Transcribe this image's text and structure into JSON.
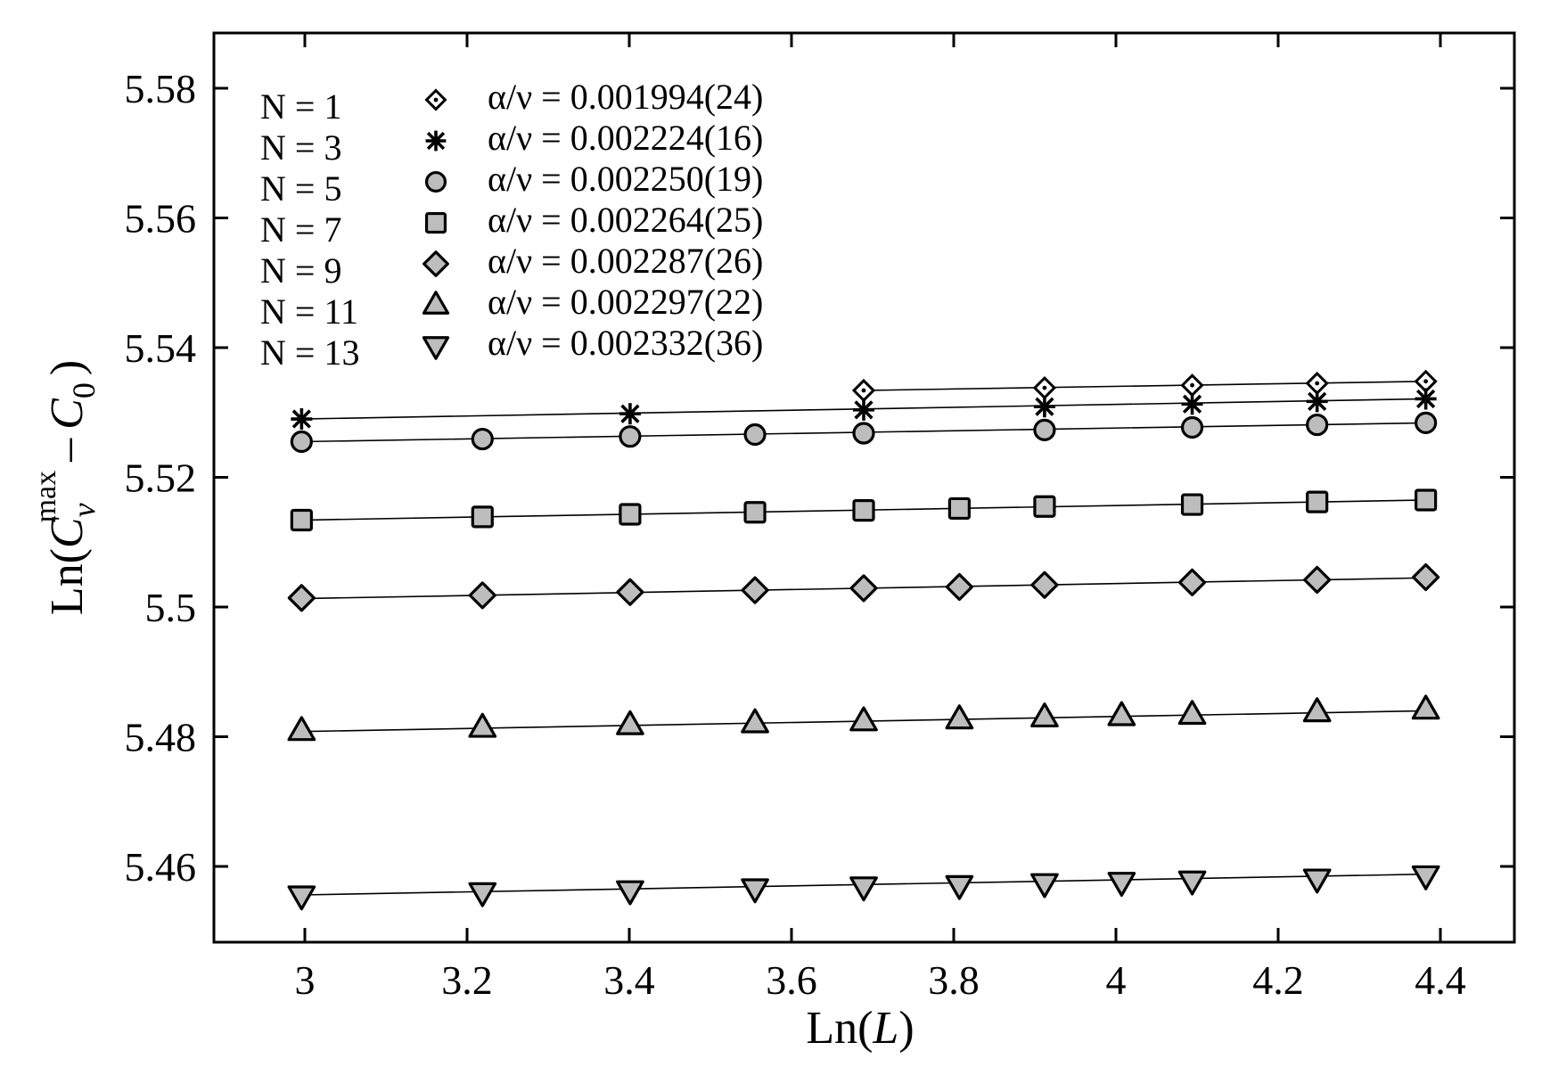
{
  "chart_data": {
    "type": "scatter",
    "xlabel_prefix": "Ln(",
    "xlabel_var": "L",
    "xlabel_suffix": ")",
    "ylabel_prefix": "Ln(",
    "ylabel_c": "C",
    "ylabel_sub_v": "v",
    "ylabel_sup": "max",
    "ylabel_minus": "–",
    "ylabel_c0": "C",
    "ylabel_sub_0": "0",
    "ylabel_suffix": ")",
    "xlim": [
      2.9,
      4.5
    ],
    "ylim": [
      5.45,
      5.59
    ],
    "x_ticks": [
      3,
      3.2,
      3.4,
      3.6,
      3.8,
      4,
      4.2,
      4.4
    ],
    "x_tick_labels": [
      "3",
      "3.2",
      "3.4",
      "3.6",
      "3.8",
      "4",
      "4.2",
      "4.4"
    ],
    "y_ticks": [
      5.46,
      5.48,
      5.5,
      5.52,
      5.54,
      5.56,
      5.58
    ],
    "y_tick_labels": [
      "5.46",
      "5.48",
      "5.5",
      "5.52",
      "5.54",
      "5.56",
      "5.58"
    ],
    "grid": false,
    "legend_position": "top-left",
    "series": [
      {
        "name": "N = 1",
        "fit_label": "α/ν = 0.001994(24)",
        "marker": "diamond-dot",
        "x": [
          3.689,
          3.912,
          4.094,
          4.248,
          4.382
        ],
        "y": [
          5.5334,
          5.5338,
          5.5342,
          5.5345,
          5.5348
        ],
        "fit": [
          [
            3.689,
            5.5334
          ],
          [
            4.382,
            5.5348
          ]
        ]
      },
      {
        "name": "N = 3",
        "fit_label": "α/ν = 0.002224(16)",
        "marker": "star",
        "x": [
          2.996,
          3.401,
          3.689,
          3.912,
          4.094,
          4.248,
          4.382
        ],
        "y": [
          5.529,
          5.5298,
          5.5304,
          5.5309,
          5.5313,
          5.5317,
          5.5321
        ],
        "fit": [
          [
            2.996,
            5.529
          ],
          [
            4.382,
            5.5321
          ]
        ]
      },
      {
        "name": "N = 5",
        "fit_label": "α/ν = 0.002250(19)",
        "marker": "circle",
        "x": [
          2.996,
          3.219,
          3.401,
          3.555,
          3.689,
          3.912,
          4.094,
          4.248,
          4.382
        ],
        "y": [
          5.5255,
          5.5259,
          5.5263,
          5.5266,
          5.5268,
          5.5273,
          5.5277,
          5.5281,
          5.5284
        ],
        "fit": [
          [
            2.996,
            5.5255
          ],
          [
            4.382,
            5.5284
          ]
        ]
      },
      {
        "name": "N = 7",
        "fit_label": "α/ν = 0.002264(25)",
        "marker": "square",
        "x": [
          2.996,
          3.219,
          3.401,
          3.555,
          3.689,
          3.807,
          3.912,
          4.094,
          4.248,
          4.382
        ],
        "y": [
          5.5134,
          5.5139,
          5.5143,
          5.5146,
          5.5149,
          5.5152,
          5.5155,
          5.5158,
          5.5162,
          5.5165
        ],
        "fit": [
          [
            2.996,
            5.5134
          ],
          [
            4.382,
            5.5165
          ]
        ]
      },
      {
        "name": "N = 9",
        "fit_label": "α/ν = 0.002287(26)",
        "marker": "diamond",
        "x": [
          2.996,
          3.219,
          3.401,
          3.555,
          3.689,
          3.807,
          3.912,
          4.094,
          4.248,
          4.382
        ],
        "y": [
          5.5014,
          5.5018,
          5.5023,
          5.5026,
          5.5029,
          5.5031,
          5.5034,
          5.5038,
          5.5042,
          5.5046
        ],
        "fit": [
          [
            2.996,
            5.5013
          ],
          [
            4.382,
            5.5045
          ]
        ]
      },
      {
        "name": "N = 11",
        "fit_label": "α/ν = 0.002297(22)",
        "marker": "triangle-up",
        "x": [
          2.996,
          3.219,
          3.401,
          3.555,
          3.689,
          3.807,
          3.912,
          4.007,
          4.094,
          4.248,
          4.382
        ],
        "y": [
          5.4809,
          5.4814,
          5.4818,
          5.4821,
          5.4824,
          5.4827,
          5.483,
          5.4832,
          5.4834,
          5.4838,
          5.4842
        ],
        "fit": [
          [
            2.996,
            5.4808
          ],
          [
            4.382,
            5.484
          ]
        ]
      },
      {
        "name": "N = 13",
        "fit_label": "α/ν = 0.002332(36)",
        "marker": "triangle-down",
        "x": [
          2.996,
          3.219,
          3.401,
          3.555,
          3.689,
          3.807,
          3.912,
          4.007,
          4.094,
          4.248,
          4.382
        ],
        "y": [
          5.4555,
          5.456,
          5.4563,
          5.4566,
          5.4569,
          5.4571,
          5.4574,
          5.4576,
          5.4578,
          5.4581,
          5.4586
        ],
        "fit": [
          [
            2.996,
            5.4556
          ],
          [
            4.382,
            5.4588
          ]
        ]
      }
    ]
  }
}
